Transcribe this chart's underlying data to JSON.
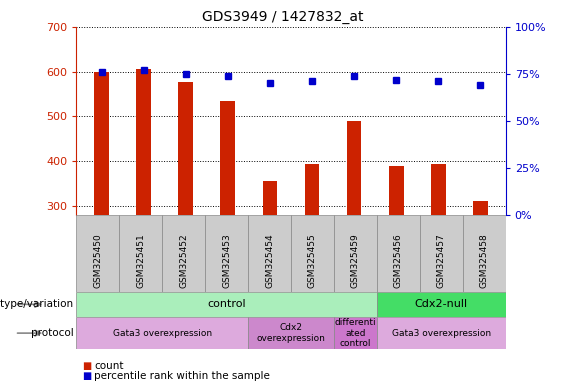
{
  "title": "GDS3949 / 1427832_at",
  "samples": [
    "GSM325450",
    "GSM325451",
    "GSM325452",
    "GSM325453",
    "GSM325454",
    "GSM325455",
    "GSM325459",
    "GSM325456",
    "GSM325457",
    "GSM325458"
  ],
  "counts": [
    600,
    605,
    578,
    535,
    355,
    395,
    490,
    390,
    395,
    312
  ],
  "percentile_ranks": [
    76,
    77,
    75,
    74,
    70,
    71,
    74,
    72,
    71,
    69
  ],
  "ylim_left": [
    280,
    700
  ],
  "ylim_right": [
    0,
    100
  ],
  "yticks_left": [
    300,
    400,
    500,
    600,
    700
  ],
  "yticks_right": [
    0,
    25,
    50,
    75,
    100
  ],
  "bar_color": "#cc2200",
  "dot_color": "#0000cc",
  "genotype_groups": [
    {
      "label": "control",
      "start": 0,
      "end": 7,
      "color": "#aaeebb"
    },
    {
      "label": "Cdx2-null",
      "start": 7,
      "end": 10,
      "color": "#44dd66"
    }
  ],
  "protocol_groups": [
    {
      "label": "Gata3 overexpression",
      "start": 0,
      "end": 4,
      "color": "#ddaadd"
    },
    {
      "label": "Cdx2\noverexpression",
      "start": 4,
      "end": 6,
      "color": "#cc88cc"
    },
    {
      "label": "differenti\nated\ncontrol",
      "start": 6,
      "end": 7,
      "color": "#cc77cc"
    },
    {
      "label": "Gata3 overexpression",
      "start": 7,
      "end": 10,
      "color": "#ddaadd"
    }
  ],
  "legend_count_color": "#cc2200",
  "legend_dot_color": "#0000cc",
  "legend_count_label": "count",
  "legend_dot_label": "percentile rank within the sample",
  "genotype_label": "genotype/variation",
  "protocol_label": "protocol"
}
